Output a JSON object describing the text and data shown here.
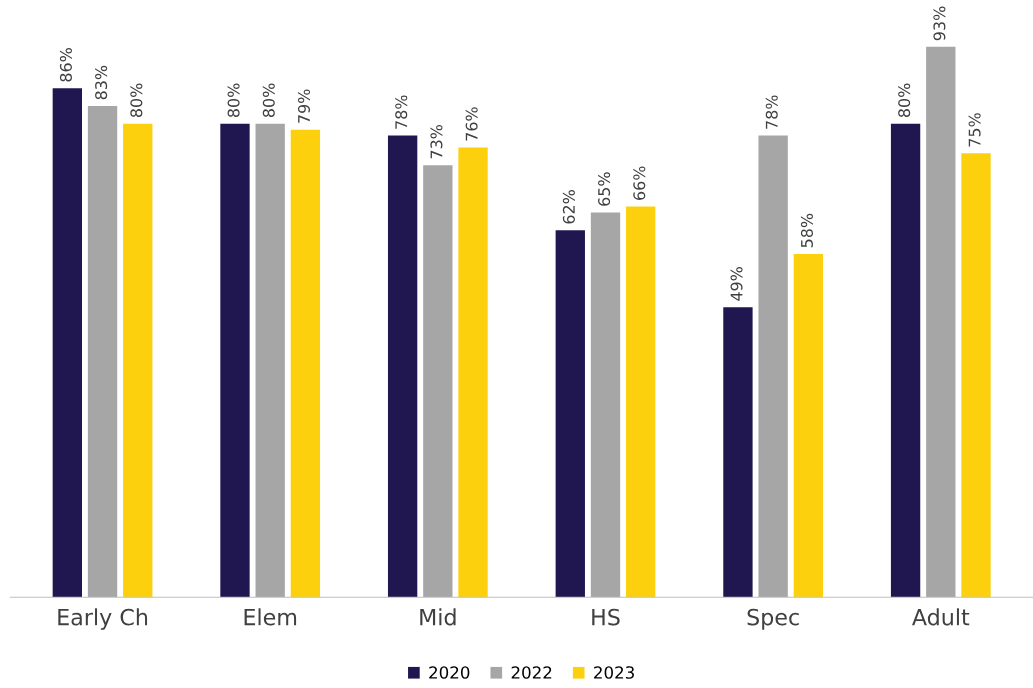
{
  "chart_data": {
    "type": "bar",
    "categories": [
      "Early Ch",
      "Elem",
      "Mid",
      "HS",
      "Spec",
      "Adult"
    ],
    "series": [
      {
        "name": "2020",
        "color": "#201751",
        "values": [
          86,
          80,
          78,
          62,
          49,
          80
        ],
        "value_labels": [
          "86%",
          "80%",
          "78%",
          "62%",
          "49%",
          "80%"
        ]
      },
      {
        "name": "2022",
        "color": "#a6a6a6",
        "values": [
          83,
          80,
          73,
          65,
          78,
          93
        ],
        "value_labels": [
          "83%",
          "80%",
          "73%",
          "65%",
          "78%",
          "93%"
        ]
      },
      {
        "name": "2023",
        "color": "#fdd00d",
        "values": [
          80,
          79,
          76,
          66,
          58,
          75
        ],
        "value_labels": [
          "80%",
          "79%",
          "76%",
          "66%",
          "58%",
          "75%"
        ]
      }
    ],
    "legend": "bottom",
    "grid": false,
    "tick_labels": "x"
  }
}
